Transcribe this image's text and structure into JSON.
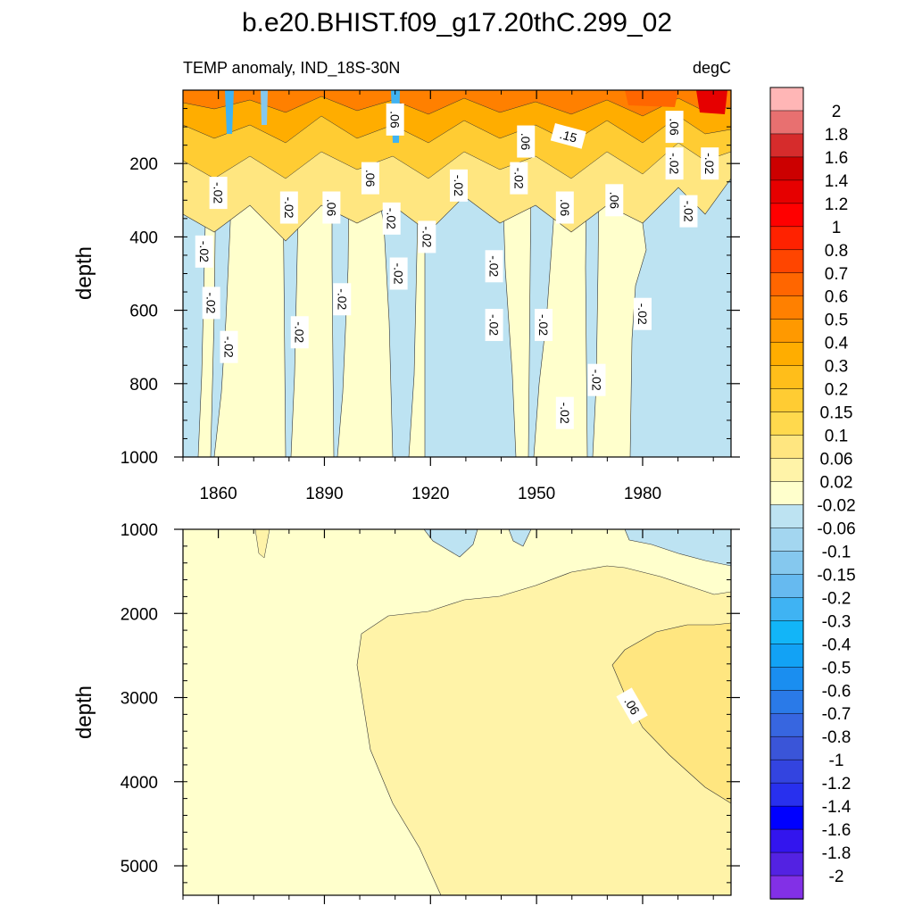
{
  "figure": {
    "title": "b.e20.BHIST.f09_g17.20thC.299_02",
    "left_subtitle": "TEMP anomaly, IND_18S-30N",
    "right_subtitle": "degC"
  },
  "chart_data": [
    {
      "type": "heatmap",
      "panel": "upper",
      "title": "b.e20.BHIST.f09_g17.20thC.299_02",
      "left_subtitle": "TEMP anomaly, IND_18S-30N",
      "units": "degC",
      "xlabel": "",
      "ylabel": "depth",
      "xlim": [
        1850,
        2005
      ],
      "ylim": [
        0,
        1000
      ],
      "y_reversed": true,
      "x_ticks": [
        1860,
        1890,
        1920,
        1950,
        1980
      ],
      "y_ticks": [
        200,
        400,
        600,
        800,
        1000
      ],
      "contour_labels": [
        {
          "text": "-.02",
          "x": 1860,
          "y": 280
        },
        {
          "text": "-.02",
          "x": 1856,
          "y": 440
        },
        {
          "text": "-.02",
          "x": 1858,
          "y": 580
        },
        {
          "text": "-.02",
          "x": 1863,
          "y": 700
        },
        {
          "text": "-.02",
          "x": 1880,
          "y": 320
        },
        {
          "text": "-.02",
          "x": 1883,
          "y": 660
        },
        {
          "text": ".06",
          "x": 1892,
          "y": 320
        },
        {
          "text": "-.02",
          "x": 1895,
          "y": 570
        },
        {
          "text": ".06",
          "x": 1903,
          "y": 240
        },
        {
          "text": ".06",
          "x": 1910,
          "y": 80
        },
        {
          "text": "-.02",
          "x": 1909,
          "y": 350
        },
        {
          "text": "-.02",
          "x": 1911,
          "y": 500
        },
        {
          "text": "-.02",
          "x": 1919,
          "y": 400
        },
        {
          "text": "-.02",
          "x": 1928,
          "y": 260
        },
        {
          "text": "-.02",
          "x": 1938,
          "y": 480
        },
        {
          "text": "-.02",
          "x": 1938,
          "y": 640
        },
        {
          "text": "-.02",
          "x": 1945,
          "y": 240
        },
        {
          "text": ".06",
          "x": 1947,
          "y": 140
        },
        {
          "text": ".15",
          "x": 1959,
          "y": 125
        },
        {
          "text": "-.02",
          "x": 1952,
          "y": 640
        },
        {
          "text": ".06",
          "x": 1958,
          "y": 320
        },
        {
          "text": "-.02",
          "x": 1958,
          "y": 880
        },
        {
          "text": ".06",
          "x": 1972,
          "y": 300
        },
        {
          "text": "-.02",
          "x": 1967,
          "y": 790
        },
        {
          "text": "-.02",
          "x": 1980,
          "y": 610
        },
        {
          "text": ".06",
          "x": 1989,
          "y": 100
        },
        {
          "text": "-.02",
          "x": 1989,
          "y": 200
        },
        {
          "text": "-.02",
          "x": 1993,
          "y": 330
        },
        {
          "text": "-.02",
          "x": 1999,
          "y": 200
        }
      ]
    },
    {
      "type": "heatmap",
      "panel": "lower",
      "xlabel": "",
      "ylabel": "depth",
      "xlim": [
        1850,
        2005
      ],
      "ylim": [
        1000,
        5350
      ],
      "y_reversed": true,
      "y_ticks": [
        1000,
        2000,
        3000,
        4000,
        5000
      ],
      "contour_labels": [
        {
          "text": ".06",
          "x": 1977,
          "y": 3100
        }
      ]
    }
  ],
  "colorbar": {
    "labels": [
      "2",
      "1.8",
      "1.6",
      "1.4",
      "1.2",
      "1",
      "0.8",
      "0.7",
      "0.6",
      "0.5",
      "0.4",
      "0.3",
      "0.2",
      "0.15",
      "0.1",
      "0.06",
      "0.02",
      "-0.02",
      "-0.06",
      "-0.1",
      "-0.15",
      "-0.2",
      "-0.3",
      "-0.4",
      "-0.5",
      "-0.6",
      "-0.7",
      "-0.8",
      "-1",
      "-1.2",
      "-1.4",
      "-1.6",
      "-1.8",
      "-2"
    ],
    "colors": [
      "#ffb6b6",
      "#e87070",
      "#d62c2c",
      "#cc0000",
      "#e60000",
      "#ff0000",
      "#ff2200",
      "#ff4500",
      "#ff6600",
      "#ff8000",
      "#ff9900",
      "#ffad00",
      "#ffbe1a",
      "#ffcc33",
      "#ffd94d",
      "#ffe680",
      "#fff3a8",
      "#ffffcc",
      "#bde3f2",
      "#a3d6f0",
      "#85c8ee",
      "#66baf0",
      "#3fb3f3",
      "#12b5f8",
      "#12a2f5",
      "#1a8ef0",
      "#2a7ae8",
      "#3766e0",
      "#3a55d8",
      "#3344e0",
      "#2830ee",
      "#0000ff",
      "#3315ee",
      "#5322e2",
      "#8230e6"
    ]
  }
}
